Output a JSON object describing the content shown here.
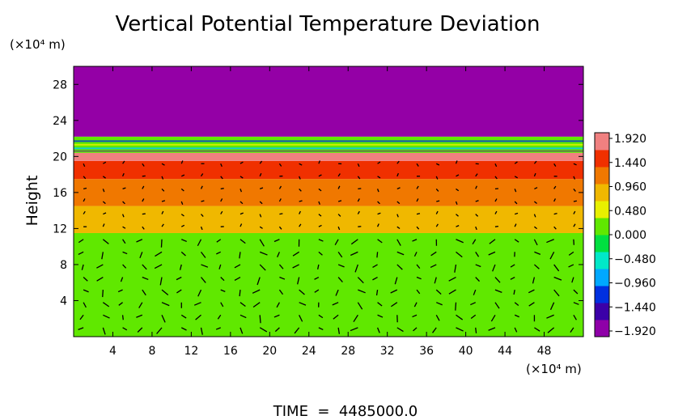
{
  "chart_data": {
    "type": "heatmap",
    "title": "Vertical Potential Temperature Deviation",
    "ylabel": "Height",
    "y_unit": "(×10⁴ m)",
    "x_unit": "(×10⁴ m)",
    "xlim": [
      0,
      52
    ],
    "ylim": [
      0,
      30
    ],
    "xticks": [
      "4",
      "8",
      "12",
      "16",
      "20",
      "24",
      "28",
      "32",
      "36",
      "40",
      "44",
      "48"
    ],
    "yticks": [
      "4",
      "8",
      "12",
      "16",
      "20",
      "24",
      "28"
    ],
    "colorbar": {
      "labels": [
        "1.920",
        "1.440",
        "0.960",
        "0.480",
        "0.000",
        "-0.480",
        "-0.960",
        "-1.440",
        "-1.920"
      ],
      "range": [
        -1.92,
        1.92
      ]
    },
    "layers": [
      {
        "y_from": 0,
        "y_to": 11.5,
        "value": 0.2
      },
      {
        "y_from": 11.5,
        "y_to": 14.5,
        "value": 0.95
      },
      {
        "y_from": 14.5,
        "y_to": 17.5,
        "value": 1.2
      },
      {
        "y_from": 17.5,
        "y_to": 19.5,
        "value": 1.5
      },
      {
        "y_from": 19.5,
        "y_to": 20.4,
        "value": 1.8
      },
      {
        "y_from": 20.4,
        "y_to": 22.2,
        "value": 0.0
      },
      {
        "y_from": 22.2,
        "y_to": 30,
        "value": -1.92
      }
    ],
    "vectors": "wind vector field overlay",
    "footer": "TIME  =  4485000.0"
  },
  "colors": {
    "top_layer": "#9400a6",
    "scale": [
      "#8f00a8",
      "#3b00a8",
      "#0030e0",
      "#00a8ff",
      "#00e8c8",
      "#00e040",
      "#60e800",
      "#e8f000",
      "#f0b800",
      "#f07800",
      "#f03000",
      "#f08080"
    ]
  }
}
